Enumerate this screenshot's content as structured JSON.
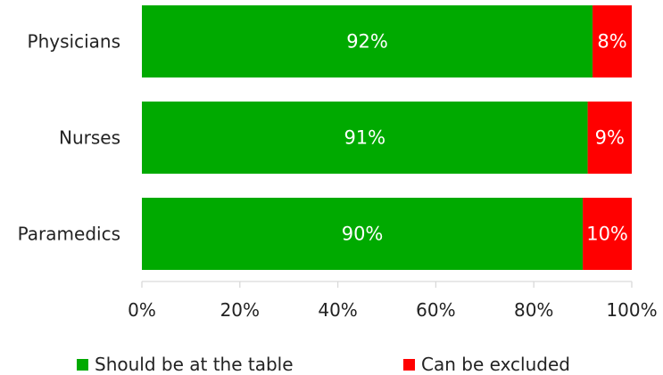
{
  "chart_data": {
    "type": "bar",
    "orientation": "horizontal",
    "stacked": true,
    "categories": [
      "Physicians",
      "Nurses",
      "Paramedics"
    ],
    "series": [
      {
        "name": "Should be at the table",
        "values": [
          92,
          91,
          90
        ],
        "labels": [
          "92%",
          "91%",
          "90%"
        ],
        "color": "#00AA00"
      },
      {
        "name": "Can be excluded",
        "values": [
          8,
          9,
          10
        ],
        "labels": [
          "8%",
          "9%",
          "10%"
        ],
        "color": "#FF0000"
      }
    ],
    "xlim": [
      0,
      100
    ],
    "x_ticks": [
      "0%",
      "20%",
      "40%",
      "60%",
      "80%",
      "100%"
    ],
    "grid": false,
    "legend_position": "bottom"
  }
}
